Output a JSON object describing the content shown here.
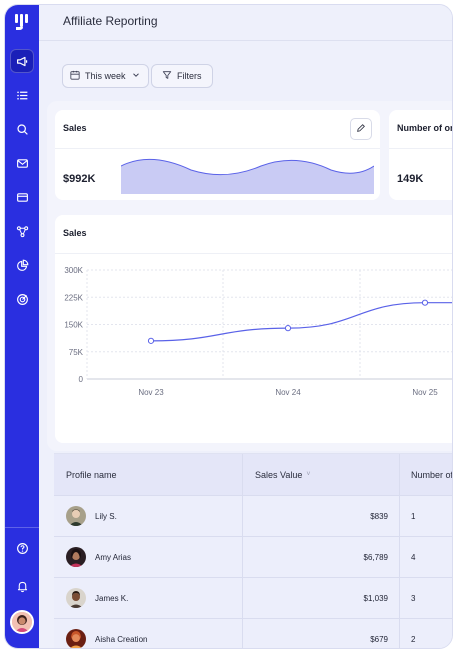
{
  "header": {
    "title": "Affiliate Reporting"
  },
  "toolbar": {
    "date_filter_label": "This week",
    "filters_label": "Filters"
  },
  "kpis": [
    {
      "title": "Sales",
      "value": "$992K"
    },
    {
      "title": "Number of orders",
      "value": "149K"
    }
  ],
  "sales_chart": {
    "title": "Sales"
  },
  "chart_data": {
    "type": "line",
    "title": "Sales",
    "categories": [
      "Nov 23",
      "Nov 24",
      "Nov 25"
    ],
    "series": [
      {
        "values": [
          105000,
          140000,
          210000
        ]
      }
    ],
    "y_ticks": [
      "0",
      "75K",
      "150K",
      "225K",
      "300K"
    ],
    "ylim": [
      0,
      300000
    ],
    "grid": true
  },
  "table": {
    "columns": [
      "Profile name",
      "Sales Value",
      "Number of orders"
    ],
    "rows": [
      {
        "name": "Lily S.",
        "sales": "$839",
        "orders": "1"
      },
      {
        "name": "Amy Arias",
        "sales": "$6,789",
        "orders": "4"
      },
      {
        "name": "James K.",
        "sales": "$1,039",
        "orders": "3"
      },
      {
        "name": "Aisha Creation",
        "sales": "$679",
        "orders": "2"
      }
    ]
  },
  "colors": {
    "sidebar": "#2a2fe0",
    "accent": "#5a62e8",
    "area_fill": "#c9cbf4"
  },
  "icons": [
    "logo-icon",
    "megaphone-icon",
    "list-icon",
    "search-icon",
    "mail-icon",
    "card-icon",
    "share-icon",
    "pie-chart-icon",
    "target-icon",
    "help-icon",
    "bell-icon",
    "calendar-icon",
    "filter-icon",
    "pencil-icon"
  ]
}
